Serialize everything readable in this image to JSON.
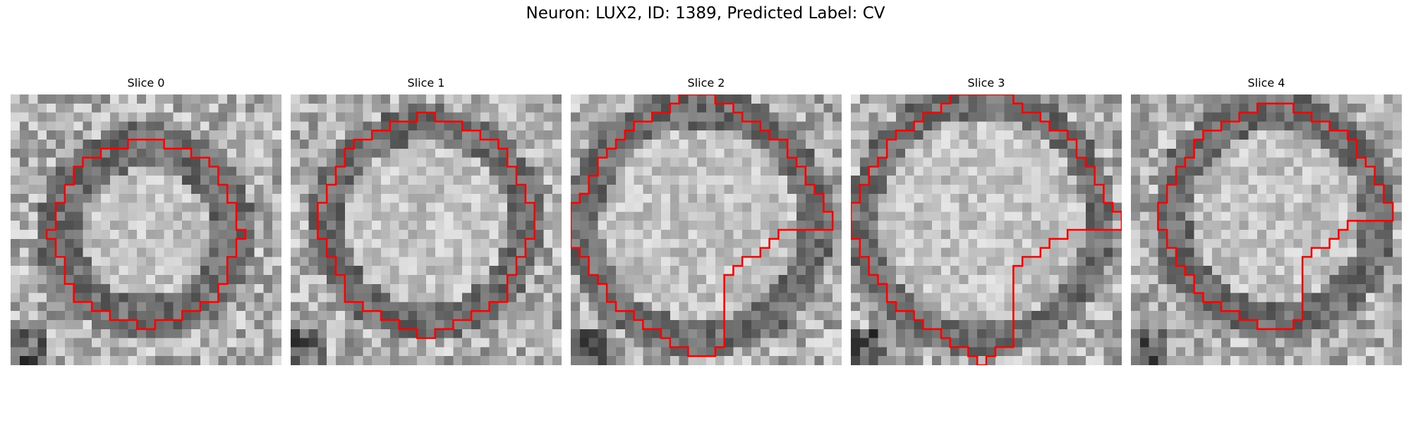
{
  "figure": {
    "title": "Neuron: LUX2, ID: 1389, Predicted Label: CV",
    "contour_color": "#ff0000",
    "colormap": "gray"
  },
  "panels": [
    {
      "title": "Slice 0"
    },
    {
      "title": "Slice 1"
    },
    {
      "title": "Slice 2"
    },
    {
      "title": "Slice 3"
    },
    {
      "title": "Slice 4"
    }
  ]
}
